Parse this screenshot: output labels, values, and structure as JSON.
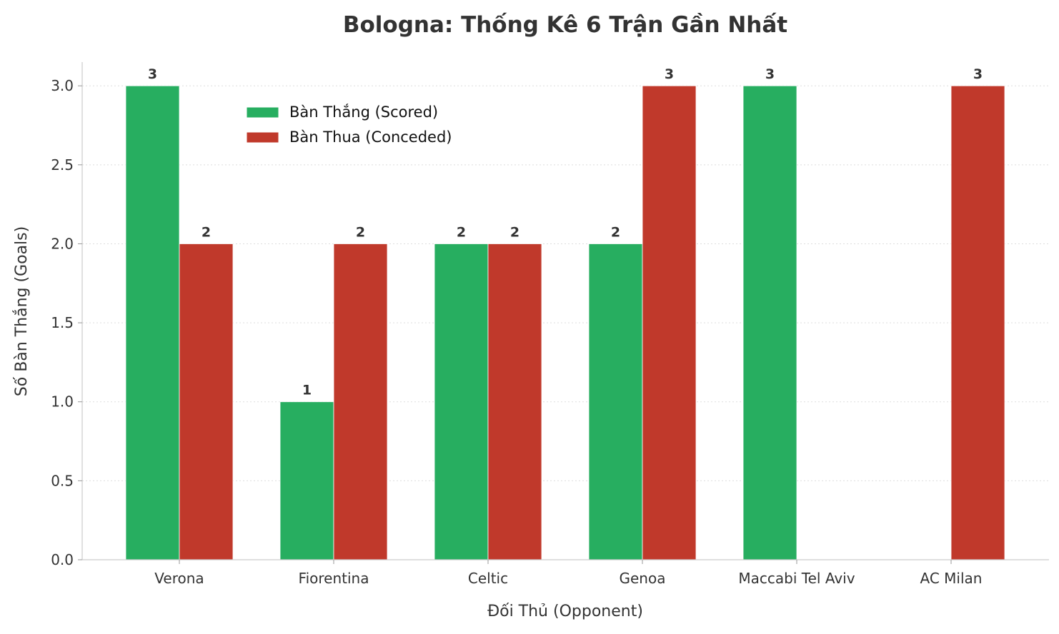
{
  "chart_data": {
    "type": "bar",
    "title": "Bologna: Thống Kê 6 Trận Gần Nhất",
    "xlabel": "Đối Thủ (Opponent)",
    "ylabel": "Số Bàn Thắng (Goals)",
    "categories": [
      "Verona",
      "Fiorentina",
      "Celtic",
      "Genoa",
      "Maccabi Tel Aviv",
      "AC Milan"
    ],
    "series": [
      {
        "name": "Bàn Thắng (Scored)",
        "color": "#27ae60",
        "values": [
          3,
          1,
          2,
          2,
          3,
          0
        ]
      },
      {
        "name": "Bàn Thua (Conceded)",
        "color": "#c0392b",
        "values": [
          2,
          2,
          2,
          3,
          0,
          3
        ]
      }
    ],
    "ylim": [
      0,
      3.15
    ],
    "yticks": [
      "0.0",
      "0.5",
      "1.0",
      "1.5",
      "2.0",
      "2.5",
      "3.0"
    ],
    "grid": "y-dotted",
    "legend": "top-left",
    "data_labels": true
  }
}
